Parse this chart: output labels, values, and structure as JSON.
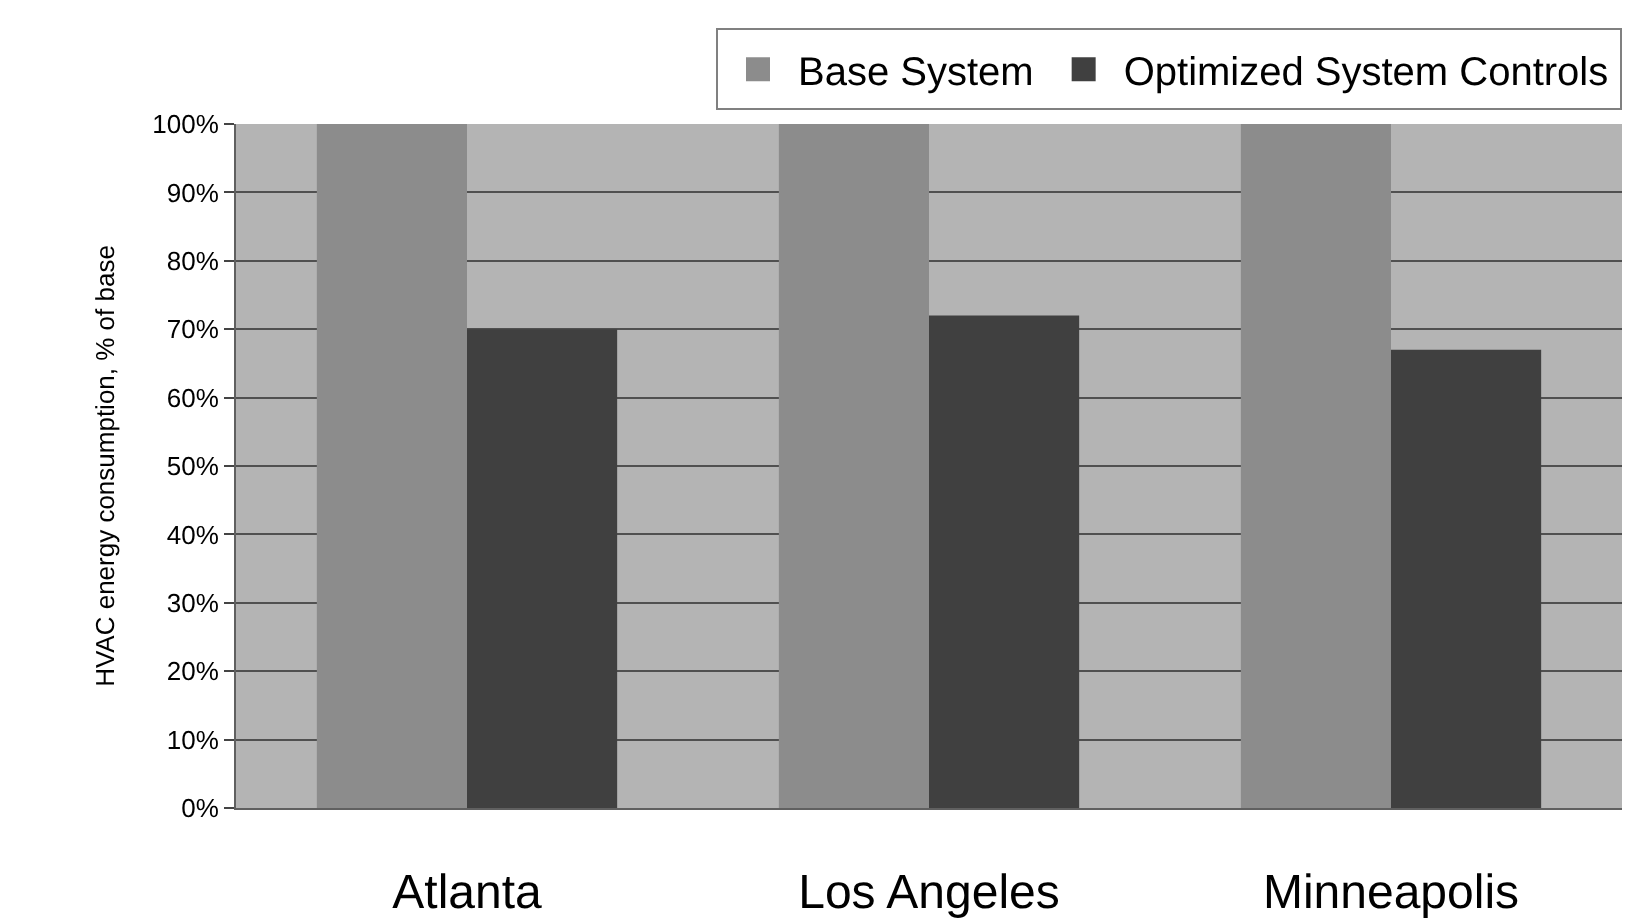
{
  "chart_data": {
    "type": "bar",
    "ylabel": "HVAC energy consumption, % of base",
    "categories": [
      "Atlanta",
      "Los Angeles",
      "Minneapolis"
    ],
    "series": [
      {
        "name": "Base System",
        "color": "#8c8c8c",
        "values": [
          100,
          100,
          100
        ]
      },
      {
        "name": "Optimized System Controls",
        "color": "#404040",
        "values": [
          70,
          72,
          67
        ]
      }
    ],
    "ylim": [
      0,
      100
    ],
    "yticks": [
      {
        "value": 0,
        "label": "0%"
      },
      {
        "value": 10,
        "label": "10%"
      },
      {
        "value": 20,
        "label": "20%"
      },
      {
        "value": 30,
        "label": "30%"
      },
      {
        "value": 40,
        "label": "40%"
      },
      {
        "value": 50,
        "label": "50%"
      },
      {
        "value": 60,
        "label": "60%"
      },
      {
        "value": 70,
        "label": "70%"
      },
      {
        "value": 80,
        "label": "80%"
      },
      {
        "value": 90,
        "label": "90%"
      },
      {
        "value": 100,
        "label": "100%"
      }
    ],
    "grid": "y",
    "legend": "top"
  }
}
